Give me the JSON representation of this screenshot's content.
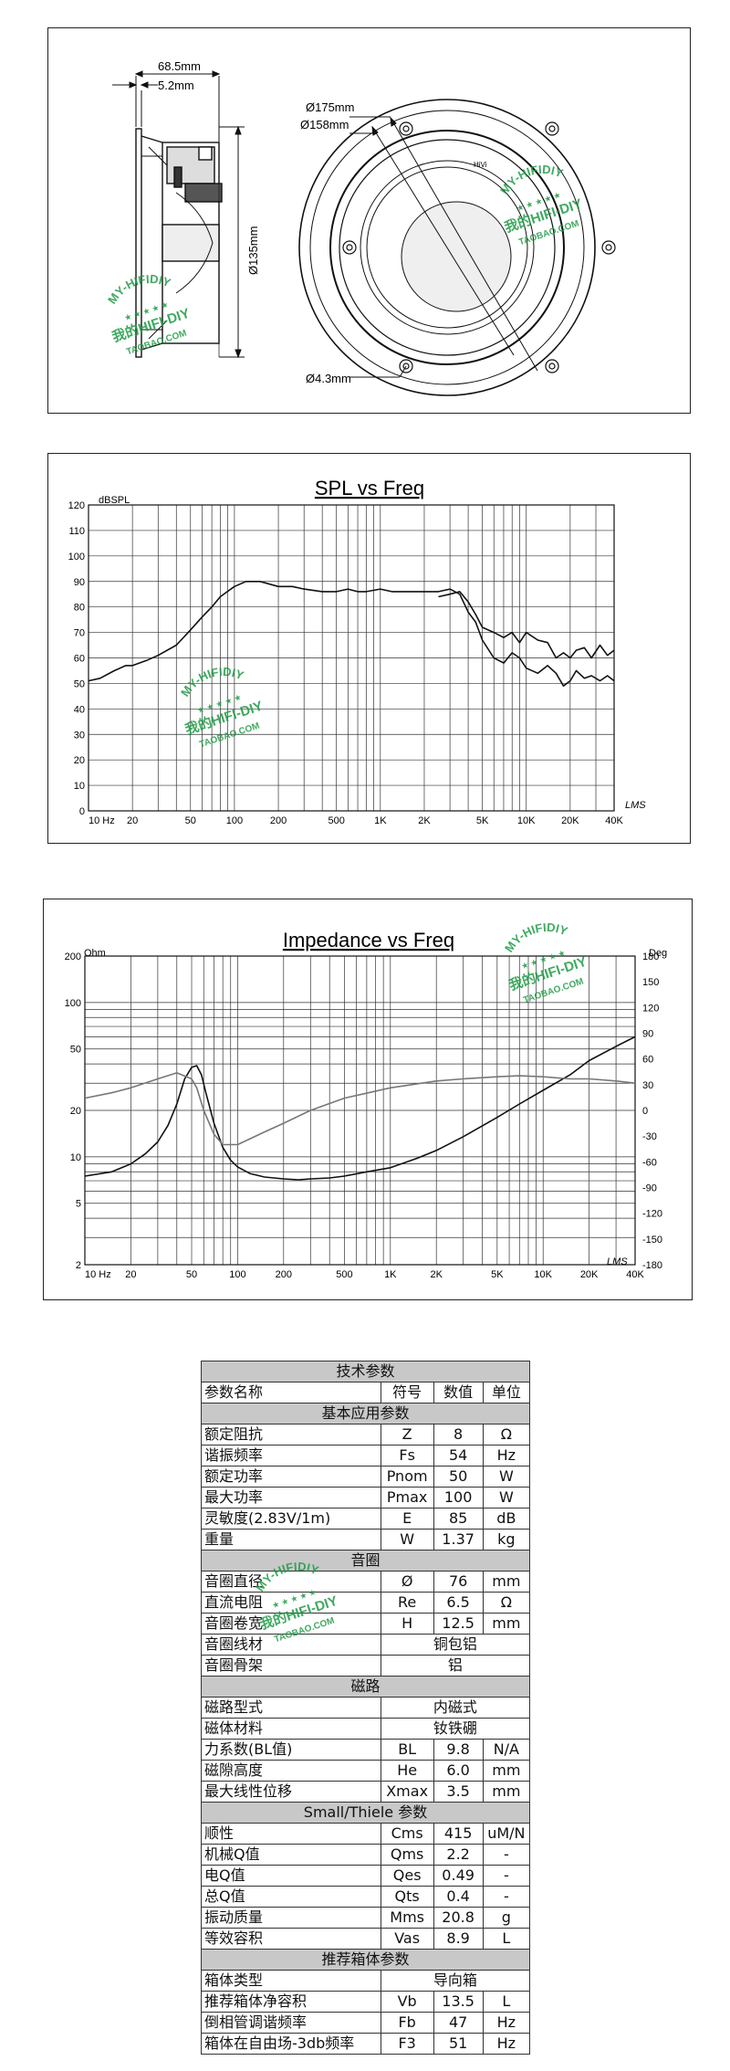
{
  "drawing": {
    "dim_overall_depth": "68.5mm",
    "dim_flange": "5.2mm",
    "dim_height": "Ø135mm",
    "dim_outer_dia": "Ø175mm",
    "dim_mount_dia": "Ø158mm",
    "dim_hole": "Ø4.3mm",
    "cap_label": "HiVi"
  },
  "watermark": {
    "top": "MY-HIFIDIY",
    "middle": "我的HIFI-DIY",
    "bottom": "TAOBAO.COM"
  },
  "spl_chart": {
    "title": "SPL vs Freq",
    "y_unit": "dBSPL",
    "signature": "LMS"
  },
  "imp_chart": {
    "title": "Impedance vs Freq",
    "y_unit_left": "Ohm",
    "y_unit_right": "Deg",
    "signature": "LMS"
  },
  "chart_data": [
    {
      "type": "line",
      "title": "SPL vs Freq",
      "ylabel": "dBSPL",
      "x_scale": "log",
      "xlim": [
        10,
        40000
      ],
      "ylim": [
        0,
        120
      ],
      "x_tick_labels": [
        "10 Hz",
        "20",
        "50",
        "100",
        "200",
        "500",
        "1K",
        "2K",
        "5K",
        "10K",
        "20K",
        "40K"
      ],
      "x_tick_values": [
        10,
        20,
        50,
        100,
        200,
        500,
        1000,
        2000,
        5000,
        10000,
        20000,
        40000
      ],
      "y_ticks": [
        0,
        10,
        20,
        30,
        40,
        50,
        60,
        70,
        80,
        90,
        100,
        110,
        120
      ],
      "grid": true,
      "series": [
        {
          "color": "#111111",
          "x": [
            10,
            12,
            15,
            18,
            20,
            25,
            30,
            40,
            50,
            60,
            70,
            80,
            100,
            120,
            150,
            200,
            250,
            300,
            400,
            500,
            600,
            700,
            800,
            1000,
            1200,
            1500,
            2000,
            2500,
            3000,
            3500,
            4000,
            4500,
            5000,
            6000,
            7000,
            8000,
            9000,
            10000,
            12000,
            14000,
            16000,
            18000,
            20000,
            22000,
            25000,
            28000,
            32000,
            36000,
            40000
          ],
          "y": [
            51,
            52,
            55,
            57,
            57,
            59,
            61,
            65,
            71,
            76,
            80,
            84,
            88,
            90,
            90,
            88,
            88,
            87,
            86,
            86,
            87,
            86,
            86,
            87,
            86,
            86,
            86,
            86,
            87,
            85,
            78,
            74,
            67,
            60,
            58,
            62,
            60,
            56,
            54,
            57,
            54,
            49,
            51,
            55,
            52,
            53,
            51,
            53,
            51
          ]
        },
        {
          "color": "#111111",
          "x": [
            2500,
            3000,
            3500,
            4000,
            4500,
            5000,
            6000,
            7000,
            8000,
            9000,
            10000,
            12000,
            14000,
            16000,
            18000,
            20000,
            22000,
            25000,
            28000,
            32000,
            36000,
            40000
          ],
          "y": [
            84,
            85,
            86,
            82,
            77,
            72,
            70,
            68,
            70,
            66,
            70,
            67,
            66,
            60,
            62,
            60,
            63,
            64,
            60,
            65,
            61,
            63
          ]
        }
      ]
    },
    {
      "type": "line",
      "title": "Impedance vs Freq",
      "ylabel": "Ohm",
      "y2label": "Deg",
      "x_scale": "log",
      "y_scale": "log",
      "xlim": [
        10,
        40000
      ],
      "ylim": [
        2,
        200
      ],
      "y2lim": [
        -180,
        180
      ],
      "x_tick_labels": [
        "10 Hz",
        "20",
        "50",
        "100",
        "200",
        "500",
        "1K",
        "2K",
        "5K",
        "10K",
        "20K",
        "40K"
      ],
      "x_tick_values": [
        10,
        20,
        50,
        100,
        200,
        500,
        1000,
        2000,
        5000,
        10000,
        20000,
        40000
      ],
      "y_ticks": [
        2,
        5,
        10,
        20,
        50,
        100,
        200
      ],
      "y2_ticks": [
        180,
        150,
        120,
        90,
        60,
        30,
        0,
        -30,
        -60,
        -90,
        -120,
        -150,
        -180
      ],
      "grid": true,
      "series": [
        {
          "name": "",
          "color": "#111111",
          "x": [
            10,
            15,
            20,
            25,
            30,
            35,
            40,
            45,
            50,
            54,
            58,
            62,
            70,
            80,
            90,
            100,
            120,
            150,
            200,
            250,
            300,
            400,
            500,
            700,
            1000,
            1500,
            2000,
            3000,
            5000,
            7000,
            10000,
            15000,
            20000,
            30000,
            40000
          ],
          "y": [
            7.5,
            8,
            9,
            10.5,
            12.5,
            16,
            22,
            32,
            38,
            39,
            34,
            26,
            16.5,
            11.5,
            9.5,
            8.6,
            7.8,
            7.4,
            7.2,
            7.1,
            7.2,
            7.3,
            7.5,
            8.0,
            8.5,
            9.8,
            11,
            13.5,
            18,
            22,
            27,
            34,
            42,
            52,
            60
          ]
        },
        {
          "name": "",
          "color": "#777777",
          "x": [
            10,
            15,
            20,
            30,
            40,
            50,
            54,
            60,
            70,
            80,
            100,
            150,
            200,
            300,
            500,
            1000,
            2000,
            3000,
            5000,
            7000,
            10000,
            15000,
            20000,
            30000,
            40000
          ],
          "y": [
            24,
            26,
            28,
            32,
            35,
            32,
            28,
            20,
            14,
            12,
            12,
            14.5,
            16.5,
            20,
            24,
            28,
            31,
            32,
            33,
            33.5,
            33,
            32,
            32,
            31,
            30
          ]
        }
      ]
    }
  ],
  "spec_table": {
    "title": "技术参数",
    "header": {
      "name": "参数名称",
      "symbol": "符号",
      "value": "数值",
      "unit": "单位"
    },
    "sections": [
      {
        "title": "基本应用参数",
        "rows": [
          {
            "name": "额定阻抗",
            "symbol": "Z",
            "value": "8",
            "unit": "Ω"
          },
          {
            "name": "谐振频率",
            "symbol": "Fs",
            "value": "54",
            "unit": "Hz"
          },
          {
            "name": "额定功率",
            "symbol": "Pnom",
            "value": "50",
            "unit": "W"
          },
          {
            "name": "最大功率",
            "symbol": "Pmax",
            "value": "100",
            "unit": "W"
          },
          {
            "name": "灵敏度(2.83V/1m)",
            "symbol": "E",
            "value": "85",
            "unit": "dB"
          },
          {
            "name": "重量",
            "symbol": "W",
            "value": "1.37",
            "unit": "kg"
          }
        ]
      },
      {
        "title": "音圈",
        "rows": [
          {
            "name": "音圈直径",
            "symbol": "Ø",
            "value": "76",
            "unit": "mm"
          },
          {
            "name": "直流电阻",
            "symbol": "Re",
            "value": "6.5",
            "unit": "Ω"
          },
          {
            "name": "音圈卷宽",
            "symbol": "H",
            "value": "12.5",
            "unit": "mm"
          },
          {
            "name": "音圈线材",
            "merged": "铜包铝"
          },
          {
            "name": "音圈骨架",
            "merged": "铝"
          }
        ]
      },
      {
        "title": "磁路",
        "rows": [
          {
            "name": "磁路型式",
            "merged": "内磁式"
          },
          {
            "name": "磁体材料",
            "merged": "钕铁硼"
          },
          {
            "name": "力系数(BL值)",
            "symbol": "BL",
            "value": "9.8",
            "unit": "N/A"
          },
          {
            "name": "磁隙高度",
            "symbol": "He",
            "value": "6.0",
            "unit": "mm"
          },
          {
            "name": "最大线性位移",
            "symbol": "Xmax",
            "value": "3.5",
            "unit": "mm"
          }
        ]
      },
      {
        "title": "Small/Thiele 参数",
        "rows": [
          {
            "name": "顺性",
            "symbol": "Cms",
            "value": "415",
            "unit": "uM/N"
          },
          {
            "name": "机械Q值",
            "symbol": "Qms",
            "value": "2.2",
            "unit": "-"
          },
          {
            "name": "电Q值",
            "symbol": "Qes",
            "value": "0.49",
            "unit": "-"
          },
          {
            "name": "总Q值",
            "symbol": "Qts",
            "value": "0.4",
            "unit": "-"
          },
          {
            "name": "振动质量",
            "symbol": "Mms",
            "value": "20.8",
            "unit": "g"
          },
          {
            "name": "等效容积",
            "symbol": "Vas",
            "value": "8.9",
            "unit": "L"
          }
        ]
      },
      {
        "title": "推荐箱体参数",
        "rows": [
          {
            "name": "箱体类型",
            "merged": "导向箱"
          },
          {
            "name": "推荐箱体净容积",
            "symbol": "Vb",
            "value": "13.5",
            "unit": "L"
          },
          {
            "name": "倒相管调谐频率",
            "symbol": "Fb",
            "value": "47",
            "unit": "Hz"
          },
          {
            "name": "箱体在自由场-3db频率",
            "symbol": "F3",
            "value": "51",
            "unit": "Hz"
          }
        ]
      }
    ]
  }
}
